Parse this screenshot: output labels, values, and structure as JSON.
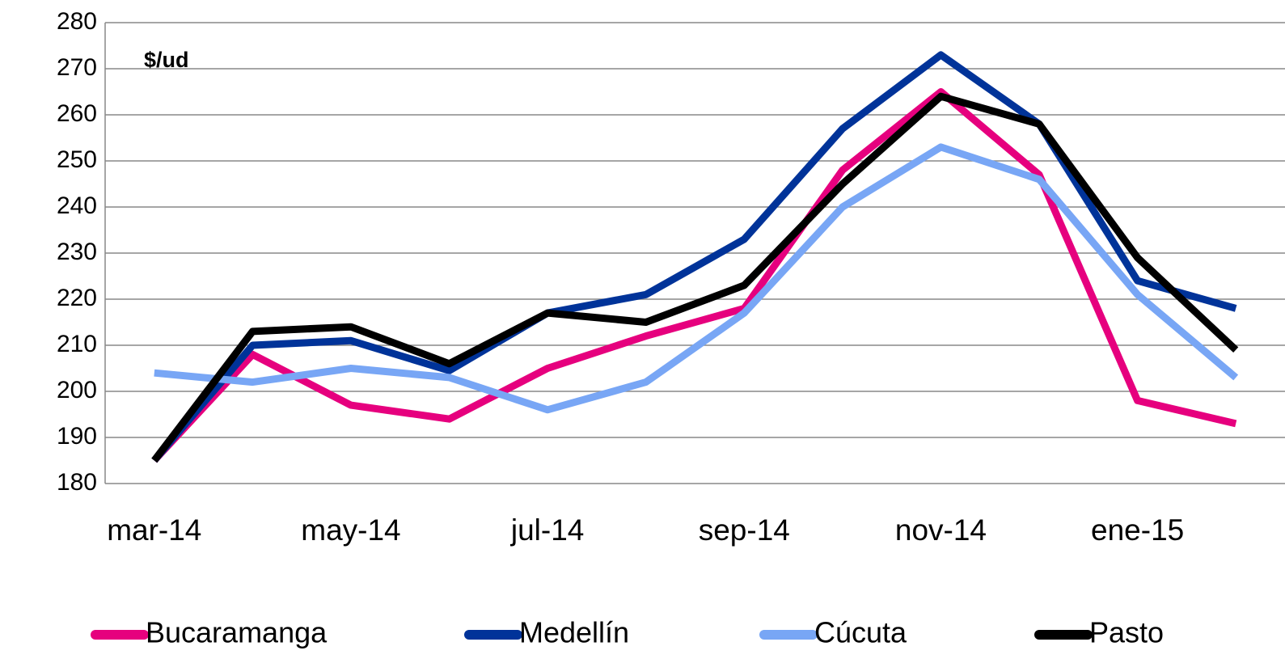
{
  "chart_data": {
    "type": "line",
    "annotation": "$/ud",
    "categories": [
      "mar-14",
      null,
      "may-14",
      null,
      "jul-14",
      null,
      "sep-14",
      null,
      "nov-14",
      null,
      "ene-15",
      null
    ],
    "series": [
      {
        "name": "Bucaramanga",
        "color": "#e6007e",
        "values": [
          185,
          208,
          197,
          194,
          205,
          212,
          218,
          248,
          265,
          247,
          198,
          193
        ]
      },
      {
        "name": "Medellín",
        "color": "#003399",
        "values": [
          185,
          210,
          211,
          204.5,
          217,
          221,
          233,
          257,
          273,
          258,
          224,
          218
        ]
      },
      {
        "name": "Cúcuta",
        "color": "#78a6f5",
        "values": [
          204,
          202,
          205,
          203,
          196,
          202,
          217,
          240,
          253,
          246,
          221,
          203
        ]
      },
      {
        "name": "Pasto",
        "color": "#000000",
        "values": [
          185,
          213,
          214,
          206,
          217,
          215,
          223,
          245,
          264,
          258,
          229,
          209
        ]
      }
    ],
    "ylim": [
      180,
      280
    ],
    "yticks": [
      180,
      190,
      200,
      210,
      220,
      230,
      240,
      250,
      260,
      270,
      280
    ],
    "grid": true,
    "legend": "bottom"
  }
}
